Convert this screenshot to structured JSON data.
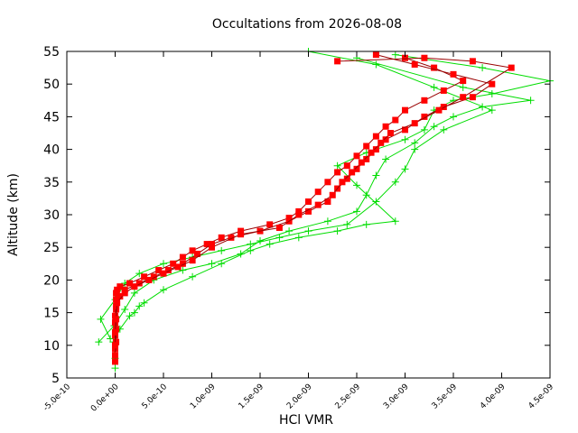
{
  "chart_data": {
    "type": "line",
    "title": "Occultations from 2026-08-08",
    "xlabel": "HCl VMR",
    "ylabel": "Altitude (km)",
    "xlim": [
      -5e-10,
      4.5e-09
    ],
    "ylim": [
      5,
      55
    ],
    "x_ticks": [
      -5e-10,
      0,
      5e-10,
      1e-09,
      1.5e-09,
      2e-09,
      2.5e-09,
      3e-09,
      3.5e-09,
      4e-09,
      4.5e-09
    ],
    "x_tick_labels": [
      "-5.0e-10",
      "0.0e+00",
      "5.0e-10",
      "1.0e-09",
      "1.5e-09",
      "2.0e-09",
      "2.5e-09",
      "3.0e-09",
      "3.5e-09",
      "4.0e-09",
      "4.5e-09"
    ],
    "y_ticks": [
      5,
      10,
      15,
      20,
      25,
      30,
      35,
      40,
      45,
      50,
      55
    ],
    "y_tick_labels": [
      "5",
      "10",
      "15",
      "20",
      "25",
      "30",
      "35",
      "40",
      "45",
      "50",
      "55"
    ],
    "grid": false,
    "legend": "none",
    "colors": {
      "green": "#00dd00",
      "red": "#ff0000",
      "red_line": "#990000"
    },
    "series": [
      {
        "marker": "plus",
        "color": "#00dd00",
        "x": [
          0.0,
          0.0,
          -2e-11,
          5e-11,
          1.5e-10,
          2e-10,
          2.5e-10,
          3e-10,
          5e-10,
          8e-10,
          1.1e-09,
          1.4e-09,
          1.6e-09,
          1.9e-09,
          2.3e-09,
          2.6e-09,
          2.9e-09,
          2.5e-09,
          2.3e-09,
          2.6e-09,
          3e-09,
          3.2e-09,
          3.3e-09,
          3.5e-09,
          3.9e-09,
          4.5e-09,
          3.8e-09,
          2.9e-09
        ],
        "y": [
          6.5,
          8,
          10.5,
          12.5,
          14.5,
          15,
          16,
          16.5,
          18.5,
          20.5,
          22.5,
          24.5,
          25.5,
          26.5,
          27.5,
          28.5,
          29,
          34.5,
          37.5,
          39.5,
          41.5,
          43,
          46,
          47.5,
          48.5,
          50.5,
          52.5,
          54.5
        ]
      },
      {
        "marker": "plus",
        "color": "#00dd00",
        "x": [
          -1.7e-10,
          -1e-11,
          1e-10,
          2e-10,
          4e-10,
          7e-10,
          1e-09,
          1.3e-09,
          1.5e-09,
          1.8e-09,
          2.2e-09,
          2.5e-09,
          2.6e-09,
          2.7e-09,
          2.8e-09,
          3.1e-09,
          3.3e-09,
          3.5e-09,
          3.8e-09,
          4.3e-09,
          3.6e-09,
          2.5e-09
        ],
        "y": [
          10.5,
          13,
          15.5,
          18,
          20,
          21.5,
          22.5,
          24,
          26,
          27.5,
          29,
          30.5,
          33,
          36,
          38.5,
          41,
          43.5,
          45,
          46.5,
          47.5,
          49.5,
          54
        ]
      },
      {
        "marker": "plus",
        "color": "#00dd00",
        "x": [
          -5e-11,
          -1.5e-10,
          0.0,
          1e-10,
          2.5e-10,
          5e-10,
          8e-10,
          1.1e-09,
          1.4e-09,
          1.7e-09,
          2e-09,
          2.4e-09,
          2.7e-09,
          2.9e-09,
          3e-09,
          3.1e-09,
          3.4e-09,
          3.9e-09,
          3.3e-09,
          2.7e-09,
          2e-09
        ],
        "y": [
          11,
          14,
          17,
          19.5,
          21,
          22.5,
          23.5,
          24.5,
          25.5,
          26.5,
          27.5,
          28.5,
          32,
          35,
          37,
          40,
          43,
          46,
          49.5,
          53,
          55
        ]
      },
      {
        "marker": "square",
        "color": "#ff0000",
        "line_color": "#990000",
        "x": [
          0.0,
          0.0,
          0.0,
          0.0,
          1e-11,
          1e-11,
          1e-11,
          2e-11,
          5e-11,
          1.5e-10,
          3e-10,
          4.5e-10,
          6e-10,
          7e-10,
          8e-10,
          9.5e-10,
          1.1e-09,
          1.3e-09,
          1.6e-09,
          1.8e-09,
          1.9e-09,
          2e-09,
          2.1e-09,
          2.2e-09,
          2.3e-09,
          2.4e-09,
          2.5e-09,
          2.6e-09,
          2.7e-09,
          2.8e-09,
          2.9e-09,
          3e-09,
          3.2e-09,
          3.4e-09,
          3.6e-09,
          3.3e-09,
          3e-09
        ],
        "y": [
          7.5,
          9.5,
          11.5,
          13.5,
          15.5,
          17,
          18,
          18.5,
          19,
          19.5,
          20.5,
          21.5,
          22.5,
          23.5,
          24.5,
          25.5,
          26.5,
          27.5,
          28.5,
          29.5,
          30.5,
          32,
          33.5,
          35,
          36.5,
          37.5,
          39,
          40.5,
          42,
          43.5,
          44.5,
          46,
          47.5,
          49,
          50.5,
          52.5,
          54
        ]
      },
      {
        "marker": "square",
        "color": "#ff0000",
        "line_color": "#990000",
        "x": [
          0.0,
          1e-11,
          1e-11,
          0.0,
          1e-11,
          5e-11,
          1e-10,
          2.5e-10,
          4e-10,
          5.5e-10,
          7e-10,
          8.5e-10,
          1e-09,
          1.2e-09,
          1.5e-09,
          1.8e-09,
          2e-09,
          2.2e-09,
          2.3e-09,
          2.4e-09,
          2.5e-09,
          2.6e-09,
          2.7e-09,
          2.8e-09,
          3e-09,
          3.2e-09,
          3.4e-09,
          3.7e-09,
          3.9e-09,
          3.5e-09,
          3.1e-09,
          2.7e-09
        ],
        "y": [
          8.5,
          10.5,
          12.5,
          14.5,
          16,
          17.5,
          18.5,
          19.5,
          20.5,
          21.5,
          22.5,
          24,
          25.5,
          26.5,
          27.5,
          29,
          30.5,
          32,
          34,
          35.5,
          37,
          38.5,
          40,
          41.5,
          43,
          45,
          46.5,
          48,
          50,
          51.5,
          53,
          54.5
        ]
      },
      {
        "marker": "square",
        "color": "#ff0000",
        "line_color": "#990000",
        "x": [
          0.0,
          0.0,
          1e-11,
          2e-11,
          1e-10,
          2e-10,
          3.5e-10,
          5e-10,
          6.5e-10,
          8e-10,
          1e-09,
          1.3e-09,
          1.7e-09,
          1.9e-09,
          2.1e-09,
          2.25e-09,
          2.35e-09,
          2.45e-09,
          2.55e-09,
          2.65e-09,
          2.75e-09,
          2.85e-09,
          3.1e-09,
          3.35e-09,
          3.6e-09,
          4.1e-09,
          3.7e-09,
          3.2e-09,
          2.3e-09
        ],
        "y": [
          10,
          12,
          14,
          16.5,
          18,
          19,
          20,
          21,
          22,
          23,
          25,
          27,
          28,
          30,
          31.5,
          33,
          35,
          36.5,
          38,
          39.5,
          41,
          42.5,
          44,
          46,
          48,
          52.5,
          53.5,
          54,
          53.5
        ]
      }
    ]
  }
}
